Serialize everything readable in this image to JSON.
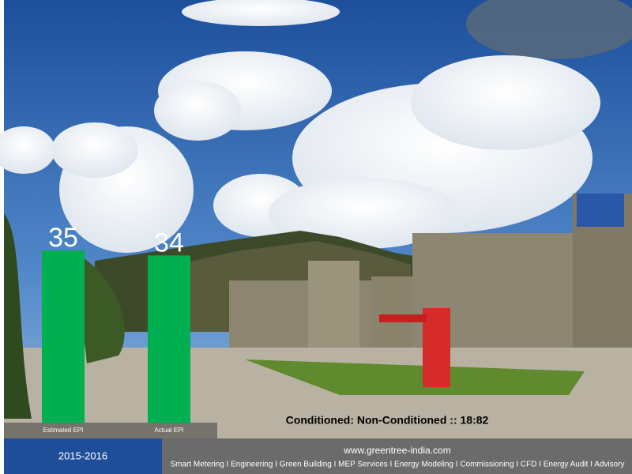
{
  "chart_data": {
    "type": "bar",
    "categories": [
      "Estimated EPI",
      "Actual EPI"
    ],
    "values": [
      35,
      34
    ],
    "color": "#00b050",
    "ylim": [
      0,
      40
    ],
    "annotation": "Conditioned: Non-Conditioned :: 18:82"
  },
  "footer": {
    "period": "2015-2016",
    "website": "www.greentree-india.com",
    "services": "Smart Metering I Engineering I Green Building I MEP Services I Energy Modeling I Commissioning I CFD I Energy Audit I Advisory"
  }
}
